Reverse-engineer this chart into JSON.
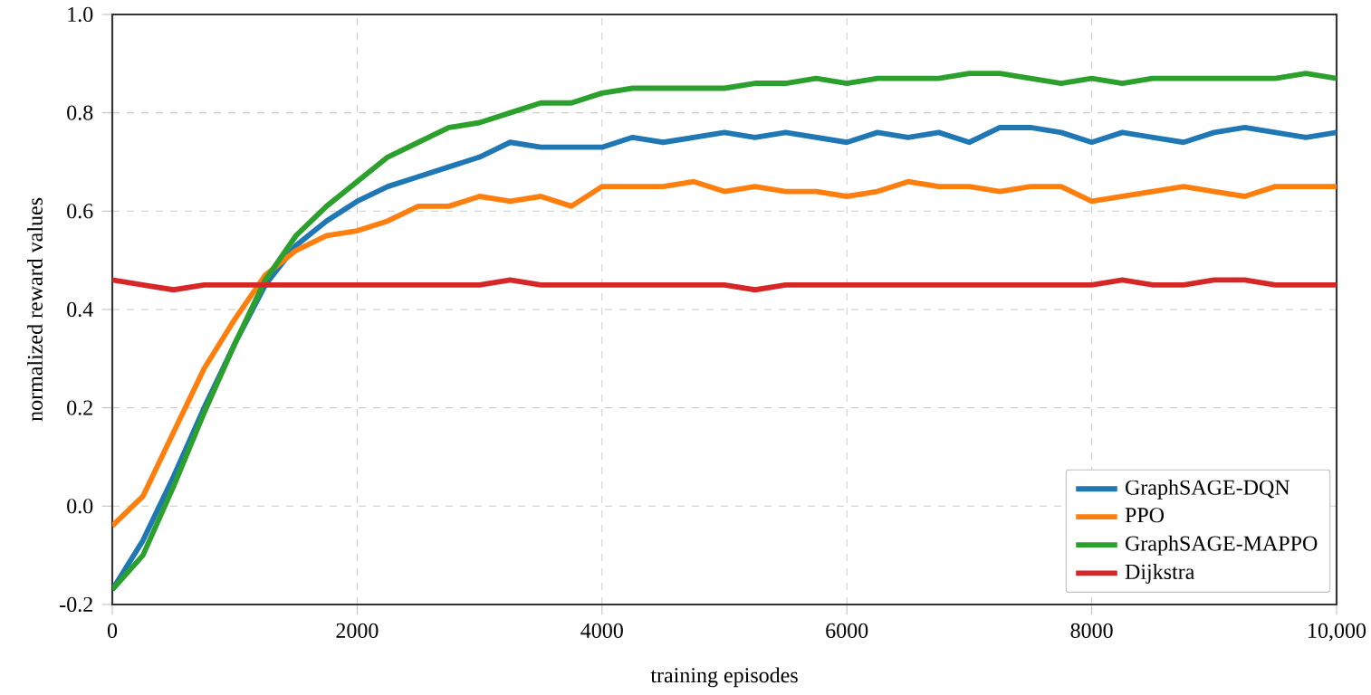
{
  "chart_data": {
    "type": "line",
    "xlabel": "training episodes",
    "ylabel": "normalized reward values",
    "x": [
      0,
      250,
      500,
      750,
      1000,
      1250,
      1500,
      1750,
      2000,
      2250,
      2500,
      2750,
      3000,
      3250,
      3500,
      3750,
      4000,
      4250,
      4500,
      4750,
      5000,
      5250,
      5500,
      5750,
      6000,
      6250,
      6500,
      6750,
      7000,
      7250,
      7500,
      7750,
      8000,
      8250,
      8500,
      8750,
      9000,
      9250,
      9500,
      9750,
      10000
    ],
    "series": [
      {
        "name": "GraphSAGE-DQN",
        "color": "#1f77b4",
        "values": [
          -0.17,
          -0.07,
          0.06,
          0.2,
          0.33,
          0.45,
          0.53,
          0.58,
          0.62,
          0.65,
          0.67,
          0.69,
          0.71,
          0.74,
          0.73,
          0.73,
          0.73,
          0.75,
          0.74,
          0.75,
          0.76,
          0.75,
          0.76,
          0.75,
          0.74,
          0.76,
          0.75,
          0.76,
          0.74,
          0.77,
          0.77,
          0.76,
          0.74,
          0.76,
          0.75,
          0.74,
          0.76,
          0.77,
          0.76,
          0.75,
          0.76
        ]
      },
      {
        "name": "PPO",
        "color": "#ff7f0e",
        "values": [
          -0.04,
          0.02,
          0.15,
          0.28,
          0.38,
          0.47,
          0.52,
          0.55,
          0.56,
          0.58,
          0.61,
          0.61,
          0.63,
          0.62,
          0.63,
          0.61,
          0.65,
          0.65,
          0.65,
          0.66,
          0.64,
          0.65,
          0.64,
          0.64,
          0.63,
          0.64,
          0.66,
          0.65,
          0.65,
          0.64,
          0.65,
          0.65,
          0.62,
          0.63,
          0.64,
          0.65,
          0.64,
          0.63,
          0.65,
          0.65,
          0.65
        ]
      },
      {
        "name": "GraphSAGE-MAPPO",
        "color": "#2ca02c",
        "values": [
          -0.17,
          -0.1,
          0.04,
          0.19,
          0.33,
          0.46,
          0.55,
          0.61,
          0.66,
          0.71,
          0.74,
          0.77,
          0.78,
          0.8,
          0.82,
          0.82,
          0.84,
          0.85,
          0.85,
          0.85,
          0.85,
          0.86,
          0.86,
          0.87,
          0.86,
          0.87,
          0.87,
          0.87,
          0.88,
          0.88,
          0.87,
          0.86,
          0.87,
          0.86,
          0.87,
          0.87,
          0.87,
          0.87,
          0.87,
          0.88,
          0.87
        ]
      },
      {
        "name": "Dijkstra",
        "color": "#d62728",
        "values": [
          0.46,
          0.45,
          0.44,
          0.45,
          0.45,
          0.45,
          0.45,
          0.45,
          0.45,
          0.45,
          0.45,
          0.45,
          0.45,
          0.46,
          0.45,
          0.45,
          0.45,
          0.45,
          0.45,
          0.45,
          0.45,
          0.44,
          0.45,
          0.45,
          0.45,
          0.45,
          0.45,
          0.45,
          0.45,
          0.45,
          0.45,
          0.45,
          0.45,
          0.46,
          0.45,
          0.45,
          0.46,
          0.46,
          0.45,
          0.45,
          0.45
        ]
      }
    ],
    "xlim": [
      0,
      10000
    ],
    "ylim": [
      -0.2,
      1.0
    ],
    "xticks": [
      0,
      2000,
      4000,
      6000,
      8000,
      {
        "value": 10000,
        "label": "10,000"
      }
    ],
    "yticks": [
      {
        "value": -0.2,
        "label": "-0.2"
      },
      {
        "value": 0,
        "label": "0.0"
      },
      {
        "value": 0.2,
        "label": "0.2"
      },
      {
        "value": 0.4,
        "label": "0.4"
      },
      {
        "value": 0.6,
        "label": "0.6"
      },
      {
        "value": 0.8,
        "label": "0.8"
      },
      {
        "value": 1.0,
        "label": "1.0"
      }
    ],
    "grid": true,
    "legend": "bottom right",
    "line_style": "solid",
    "marker": "none"
  }
}
